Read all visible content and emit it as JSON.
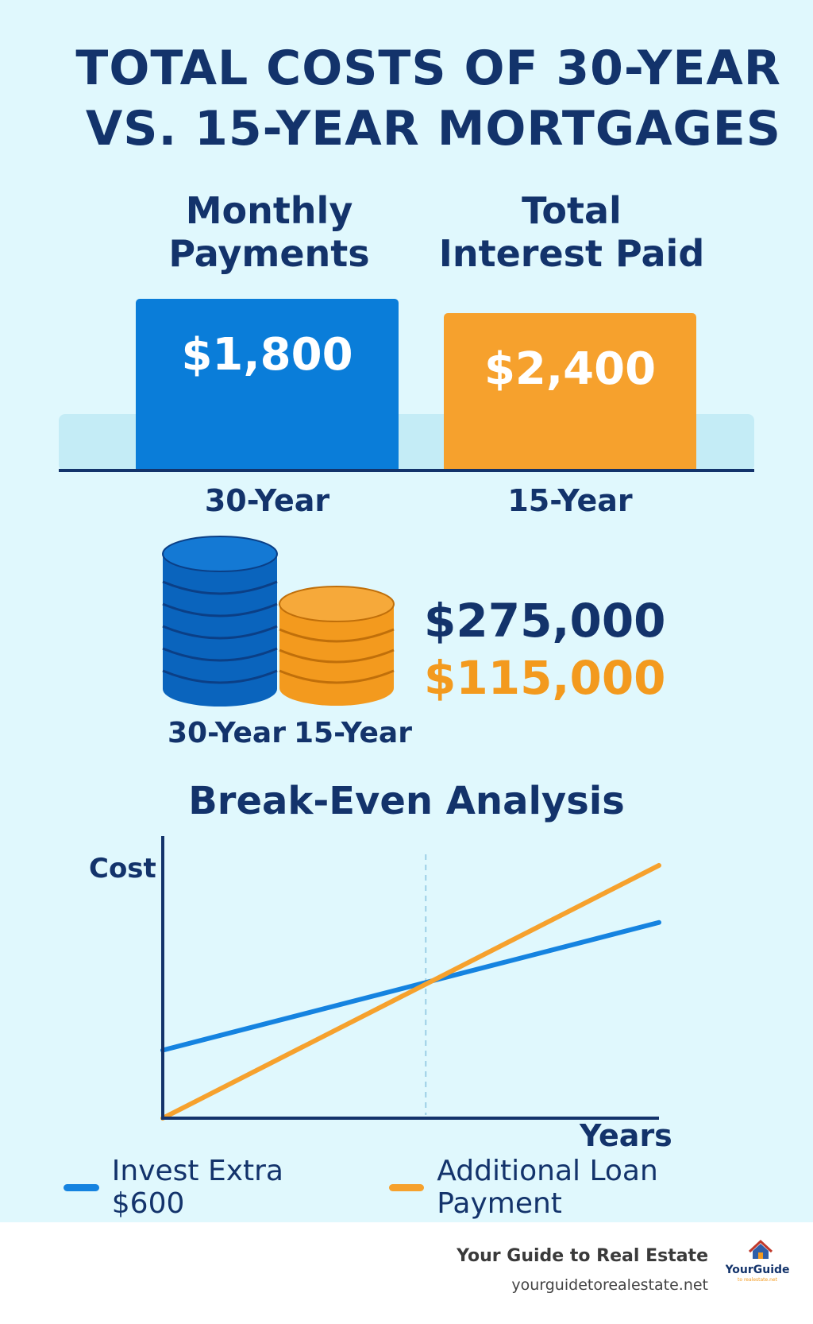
{
  "title": {
    "line1": "TOTAL COSTS OF 30-YEAR",
    "line2": "VS. 15-YEAR MORTGAGES"
  },
  "payments": {
    "headers": {
      "monthly_line1": "Monthly",
      "monthly_line2": "Payments",
      "interest_line1": "Total",
      "interest_line2": "Interest Paid"
    },
    "bars": [
      {
        "term": "30-Year",
        "value_label": "$1,800"
      },
      {
        "term": "15-Year",
        "value_label": "$2,400"
      }
    ]
  },
  "totals": {
    "value_30": "$275,000",
    "value_15": "$115,000",
    "label_30": "30-Year",
    "label_15": "15-Year"
  },
  "chart_data": {
    "type": "line",
    "title": "Break-Even Analysis",
    "xlabel": "Years",
    "ylabel": "Cost",
    "x": [
      0,
      1
    ],
    "series": [
      {
        "name": "Invest Extra $600",
        "color": "#1583e0",
        "values": [
          0.25,
          0.72
        ]
      },
      {
        "name": "Additional Loan Payment",
        "color": "#f6a12d",
        "values": [
          0.0,
          0.93
        ]
      }
    ],
    "xlim": [
      0,
      1
    ],
    "ylim": [
      0,
      1
    ],
    "break_even_x": 0.53,
    "legend": "bottom"
  },
  "footer": {
    "brand": "Your Guide to Real Estate",
    "url": "yourguidetorealestate.net",
    "logo_text": "YourGuide",
    "logo_sub": "to realestate.net"
  },
  "colors": {
    "navy": "#13336b",
    "blue": "#0a7dd9",
    "orange": "#f6a12d",
    "background": "#e0f8fd"
  }
}
